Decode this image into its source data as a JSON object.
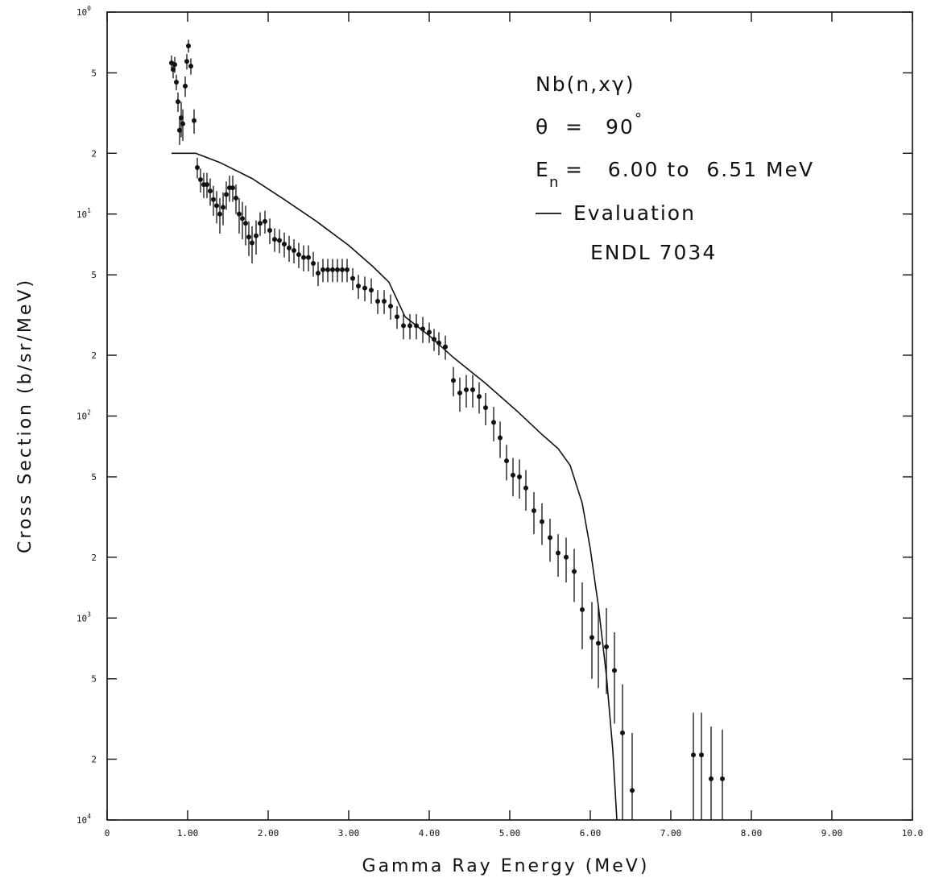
{
  "chart_data": {
    "type": "scatter",
    "title": "",
    "xlabel": "Gamma Ray Energy (MeV)",
    "ylabel": "Cross Section (b/sr/MeV)",
    "xlim": [
      0,
      10
    ],
    "ylim": [
      0.0001,
      1
    ],
    "y_scale": "log",
    "grid": false,
    "x_ticks": [
      "0",
      "1.00",
      "2.00",
      "3.00",
      "4.00",
      "5.00",
      "6.00",
      "7.00",
      "8.00",
      "9.00",
      "10.0"
    ],
    "y_ticks": [
      {
        "value": 0.0001,
        "label": "10",
        "exp": "4"
      },
      {
        "value": 0.0002,
        "label": "2",
        "exp": ""
      },
      {
        "value": 0.0005,
        "label": "5",
        "exp": ""
      },
      {
        "value": 0.001,
        "label": "10",
        "exp": "3"
      },
      {
        "value": 0.002,
        "label": "2",
        "exp": ""
      },
      {
        "value": 0.005,
        "label": "5",
        "exp": ""
      },
      {
        "value": 0.01,
        "label": "10",
        "exp": "2"
      },
      {
        "value": 0.02,
        "label": "2",
        "exp": ""
      },
      {
        "value": 0.05,
        "label": "5",
        "exp": ""
      },
      {
        "value": 0.1,
        "label": "10",
        "exp": "1"
      },
      {
        "value": 0.2,
        "label": "2",
        "exp": ""
      },
      {
        "value": 0.5,
        "label": "5",
        "exp": ""
      },
      {
        "value": 1,
        "label": "10",
        "exp": "0"
      }
    ],
    "annotations": {
      "reaction": "Nb(n,xγ)",
      "angle_symbol": "θ",
      "angle_eq": "=",
      "angle_value": "90",
      "angle_unit": "°",
      "energy_symbol": "E",
      "energy_sub": "n",
      "energy_range": "=   6.00 to  6.51 MeV",
      "legend_line_label": "Evaluation",
      "legend_line_label2": "ENDL 7034"
    },
    "series": [
      {
        "name": "Evaluation",
        "kind": "line",
        "x": [
          0.8,
          1.1,
          1.4,
          1.8,
          2.2,
          2.6,
          3.0,
          3.3,
          3.5,
          3.7,
          4.0,
          4.3,
          4.7,
          5.1,
          5.4,
          5.6,
          5.75,
          5.9,
          6.0,
          6.1,
          6.2,
          6.28,
          6.33
        ],
        "y": [
          0.2,
          0.2,
          0.18,
          0.15,
          0.118,
          0.092,
          0.07,
          0.055,
          0.046,
          0.031,
          0.025,
          0.0195,
          0.0145,
          0.0105,
          0.0081,
          0.0069,
          0.0057,
          0.0037,
          0.0022,
          0.00115,
          0.00052,
          0.00022,
          0.0001
        ]
      },
      {
        "name": "",
        "kind": "points",
        "x": [
          0.8,
          0.82,
          0.84,
          0.86,
          0.88,
          0.9,
          0.92,
          0.94,
          0.97,
          0.99,
          1.01,
          1.04,
          1.08,
          1.12,
          1.16,
          1.2,
          1.24,
          1.28,
          1.32,
          1.36,
          1.4,
          1.44,
          1.48,
          1.52,
          1.56,
          1.6,
          1.64,
          1.68,
          1.72,
          1.76,
          1.8,
          1.85,
          1.9,
          1.96,
          2.02,
          2.08,
          2.14,
          2.2,
          2.26,
          2.32,
          2.38,
          2.44,
          2.5,
          2.56,
          2.62,
          2.68,
          2.74,
          2.8,
          2.86,
          2.92,
          2.98,
          3.05,
          3.12,
          3.2,
          3.28,
          3.36,
          3.44,
          3.52,
          3.6,
          3.68,
          3.76,
          3.84,
          3.92,
          4.0,
          4.06,
          4.12,
          4.2,
          4.3,
          4.38,
          4.46,
          4.54,
          4.62,
          4.7,
          4.8,
          4.88,
          4.96,
          5.04,
          5.12,
          5.2,
          5.3,
          5.4,
          5.5,
          5.6,
          5.7,
          5.8,
          5.9,
          6.02,
          6.1,
          6.2,
          6.3,
          6.4,
          6.52,
          7.28,
          7.38,
          7.5,
          7.64
        ],
        "y": [
          0.56,
          0.52,
          0.55,
          0.45,
          0.36,
          0.26,
          0.3,
          0.28,
          0.43,
          0.57,
          0.68,
          0.54,
          0.29,
          0.17,
          0.148,
          0.14,
          0.14,
          0.13,
          0.118,
          0.11,
          0.1,
          0.108,
          0.125,
          0.135,
          0.135,
          0.12,
          0.1,
          0.095,
          0.09,
          0.077,
          0.072,
          0.078,
          0.09,
          0.092,
          0.083,
          0.075,
          0.074,
          0.071,
          0.068,
          0.066,
          0.063,
          0.061,
          0.061,
          0.057,
          0.051,
          0.053,
          0.053,
          0.053,
          0.053,
          0.053,
          0.053,
          0.048,
          0.044,
          0.043,
          0.042,
          0.037,
          0.037,
          0.035,
          0.031,
          0.028,
          0.028,
          0.028,
          0.027,
          0.026,
          0.024,
          0.023,
          0.022,
          0.015,
          0.013,
          0.0135,
          0.0135,
          0.0125,
          0.011,
          0.0093,
          0.0078,
          0.006,
          0.0051,
          0.005,
          0.0044,
          0.0034,
          0.003,
          0.0025,
          0.0021,
          0.002,
          0.0017,
          0.0011,
          0.0008,
          0.00075,
          0.00072,
          0.00055,
          0.00027,
          0.00014,
          0.00021,
          0.00021,
          0.00016,
          0.00016
        ],
        "yerr_lo": [
          0.05,
          0.05,
          0.05,
          0.04,
          0.04,
          0.04,
          0.06,
          0.05,
          0.05,
          0.05,
          0.05,
          0.05,
          0.04,
          0.02,
          0.02,
          0.02,
          0.02,
          0.02,
          0.02,
          0.02,
          0.02,
          0.02,
          0.02,
          0.02,
          0.02,
          0.02,
          0.02,
          0.02,
          0.02,
          0.015,
          0.015,
          0.015,
          0.012,
          0.012,
          0.012,
          0.01,
          0.01,
          0.01,
          0.01,
          0.009,
          0.009,
          0.009,
          0.009,
          0.008,
          0.007,
          0.007,
          0.007,
          0.007,
          0.007,
          0.007,
          0.007,
          0.006,
          0.006,
          0.006,
          0.006,
          0.005,
          0.005,
          0.005,
          0.004,
          0.004,
          0.004,
          0.004,
          0.004,
          0.003,
          0.003,
          0.003,
          0.003,
          0.0025,
          0.0025,
          0.0025,
          0.0025,
          0.0022,
          0.002,
          0.0018,
          0.0016,
          0.0012,
          0.0011,
          0.0011,
          0.001,
          0.0008,
          0.0007,
          0.0006,
          0.0005,
          0.0005,
          0.0005,
          0.0004,
          0.0003,
          0.0003,
          0.0003,
          0.00025,
          0.00017,
          4e-05,
          0.00011,
          0.00011,
          8e-05,
          6e-05
        ],
        "yerr_hi": [
          0.05,
          0.05,
          0.05,
          0.04,
          0.04,
          0.04,
          0.06,
          0.05,
          0.05,
          0.05,
          0.05,
          0.05,
          0.04,
          0.02,
          0.02,
          0.02,
          0.02,
          0.02,
          0.02,
          0.02,
          0.02,
          0.02,
          0.02,
          0.02,
          0.02,
          0.02,
          0.02,
          0.02,
          0.02,
          0.015,
          0.015,
          0.015,
          0.012,
          0.012,
          0.012,
          0.01,
          0.01,
          0.01,
          0.01,
          0.009,
          0.009,
          0.009,
          0.009,
          0.008,
          0.007,
          0.007,
          0.007,
          0.007,
          0.007,
          0.007,
          0.007,
          0.006,
          0.006,
          0.006,
          0.006,
          0.005,
          0.005,
          0.005,
          0.004,
          0.004,
          0.004,
          0.004,
          0.004,
          0.003,
          0.003,
          0.003,
          0.003,
          0.0025,
          0.0025,
          0.0025,
          0.0025,
          0.0022,
          0.002,
          0.0018,
          0.0016,
          0.0012,
          0.0011,
          0.0011,
          0.001,
          0.0008,
          0.0007,
          0.0006,
          0.0005,
          0.0005,
          0.0005,
          0.0004,
          0.0004,
          0.0004,
          0.0004,
          0.0003,
          0.0002,
          0.00013,
          0.00013,
          0.00013,
          0.00013,
          0.00012
        ]
      }
    ]
  }
}
